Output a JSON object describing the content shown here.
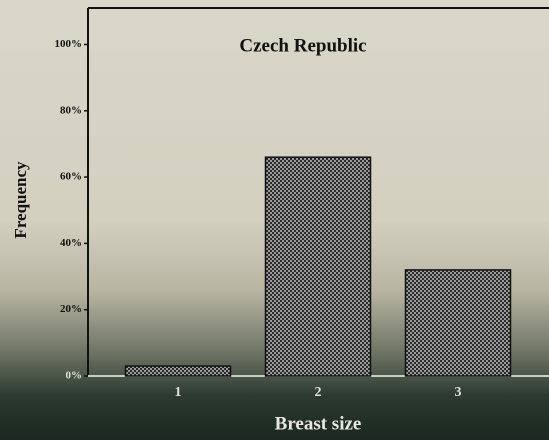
{
  "chart_data": {
    "type": "bar",
    "title": "Czech Republic",
    "x_label": "Breast size",
    "y_label": "Frequency",
    "categories": [
      "1",
      "2",
      "3"
    ],
    "values": [
      3,
      66,
      32
    ],
    "color": "#2b2b2b",
    "ylim": [
      0,
      111
    ],
    "yticks": [
      {
        "value": 0,
        "label": "0%"
      },
      {
        "value": 20,
        "label": "20%"
      },
      {
        "value": 40,
        "label": "40%"
      },
      {
        "value": 60,
        "label": "60%"
      },
      {
        "value": 80,
        "label": "80%"
      },
      {
        "value": 100,
        "label": "100%"
      }
    ],
    "grid": false
  }
}
